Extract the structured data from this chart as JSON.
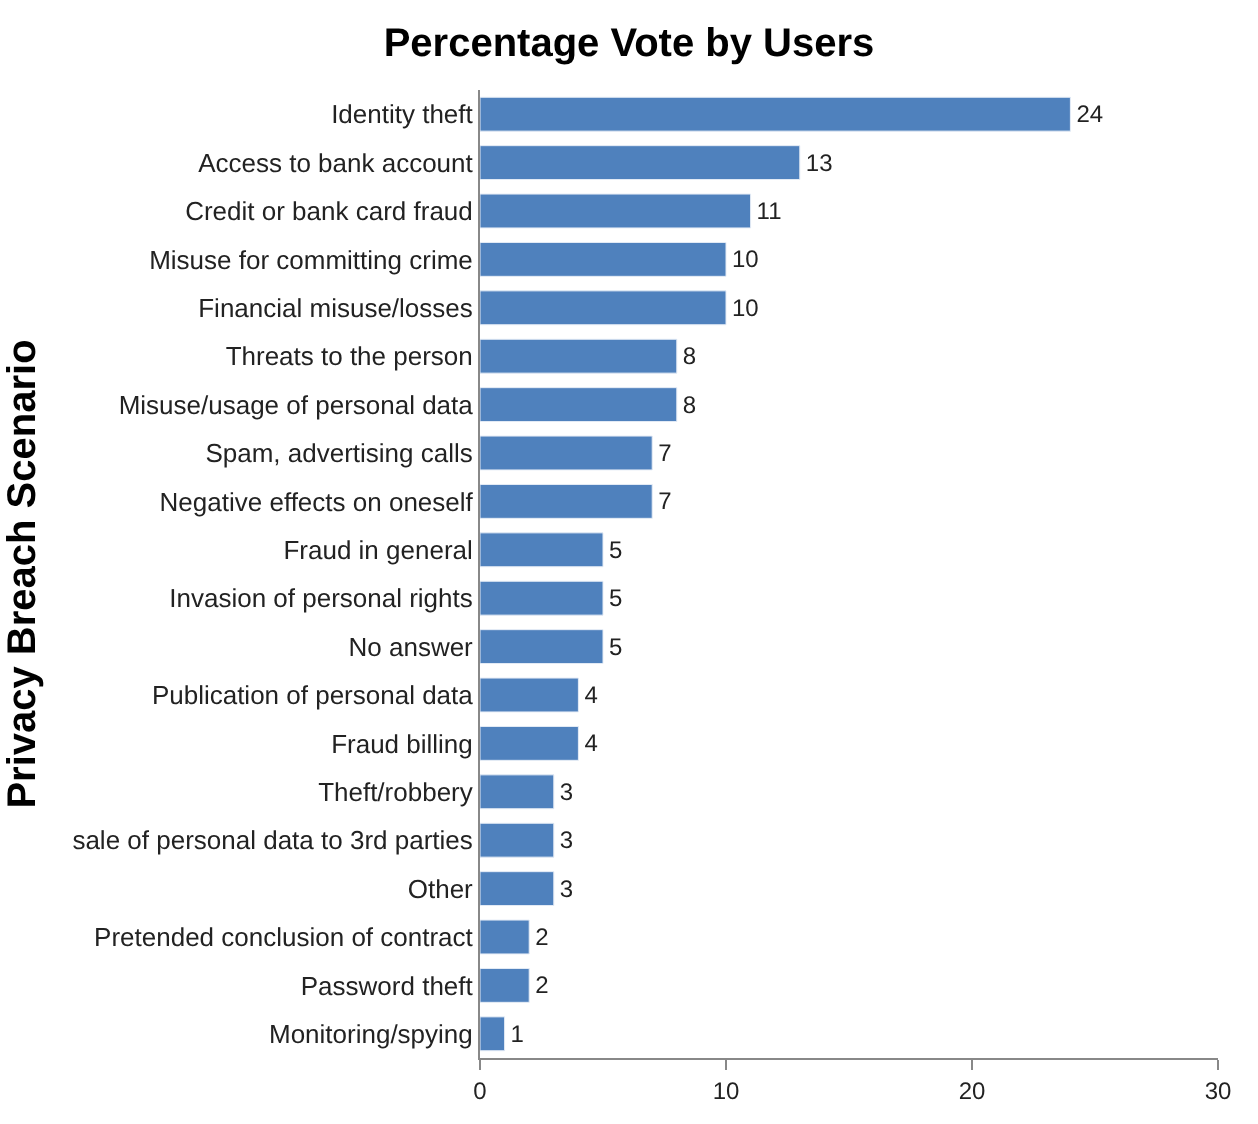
{
  "chart_data": {
    "type": "bar",
    "orientation": "horizontal",
    "title": "Percentage Vote by Users",
    "ylabel": "Privacy Breach Scenario",
    "categories": [
      "Identity theft",
      "Access to bank account",
      "Credit or bank card fraud",
      "Misuse for committing crime",
      "Financial misuse/losses",
      "Threats to the person",
      "Misuse/usage of personal data",
      "Spam, advertising calls",
      "Negative effects on oneself",
      "Fraud in general",
      "Invasion of personal rights",
      "No answer",
      "Publication of personal data",
      "Fraud billing",
      "Theft/robbery",
      "sale of personal data to 3rd parties",
      "Other",
      "Pretended conclusion of contract",
      "Password theft",
      "Monitoring/spying"
    ],
    "values": [
      24,
      13,
      11,
      10,
      10,
      8,
      8,
      7,
      7,
      5,
      5,
      5,
      4,
      4,
      3,
      3,
      3,
      2,
      2,
      1
    ],
    "color": "#4f81bd",
    "xlim": [
      0,
      30
    ],
    "xticks": [
      0,
      10,
      20,
      30
    ],
    "data_labels": true
  }
}
